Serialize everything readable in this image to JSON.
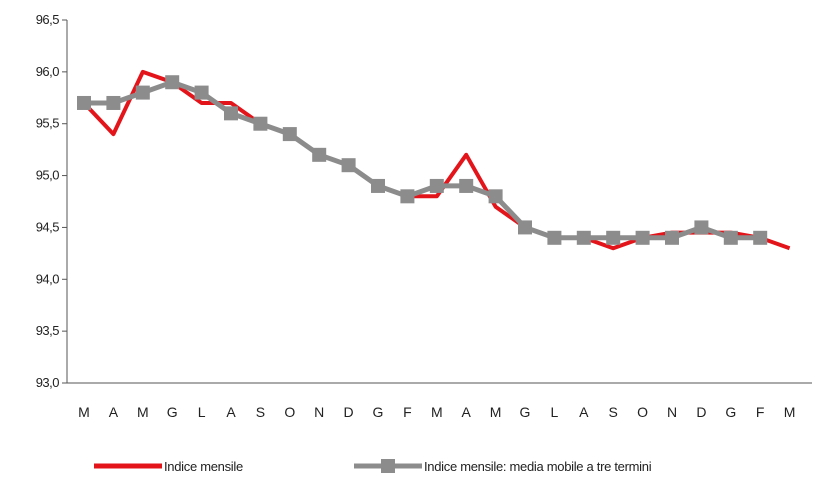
{
  "chart_data": {
    "type": "line",
    "categories": [
      "M",
      "A",
      "M",
      "G",
      "L",
      "A",
      "S",
      "O",
      "N",
      "D",
      "G",
      "F",
      "M",
      "A",
      "M",
      "G",
      "L",
      "A",
      "S",
      "O",
      "N",
      "D",
      "G",
      "F",
      "M"
    ],
    "series": [
      {
        "name": "Indice mensile",
        "color": "#e3151b",
        "values": [
          95.7,
          95.4,
          96.0,
          95.9,
          95.7,
          95.7,
          95.5,
          95.4,
          95.2,
          95.1,
          94.9,
          94.8,
          94.8,
          95.2,
          94.7,
          94.5,
          94.4,
          94.4,
          94.3,
          94.4,
          94.45,
          94.45,
          94.45,
          94.4,
          94.3
        ]
      },
      {
        "name": "Indice mensile: media mobile a tre termini",
        "color": "#8c8c8c",
        "values": [
          95.7,
          95.7,
          95.8,
          95.9,
          95.8,
          95.6,
          95.5,
          95.4,
          95.2,
          95.1,
          94.9,
          94.8,
          94.9,
          94.9,
          94.8,
          94.5,
          94.4,
          94.4,
          94.4,
          94.4,
          94.4,
          94.5,
          94.4,
          94.4,
          null
        ]
      }
    ],
    "ylim": [
      93.0,
      96.5
    ],
    "yticks": [
      "93,0",
      "93,5",
      "94,0",
      "94,5",
      "95,0",
      "95,5",
      "96,0",
      "96,5"
    ],
    "grid": false,
    "legend_position": "bottom"
  }
}
